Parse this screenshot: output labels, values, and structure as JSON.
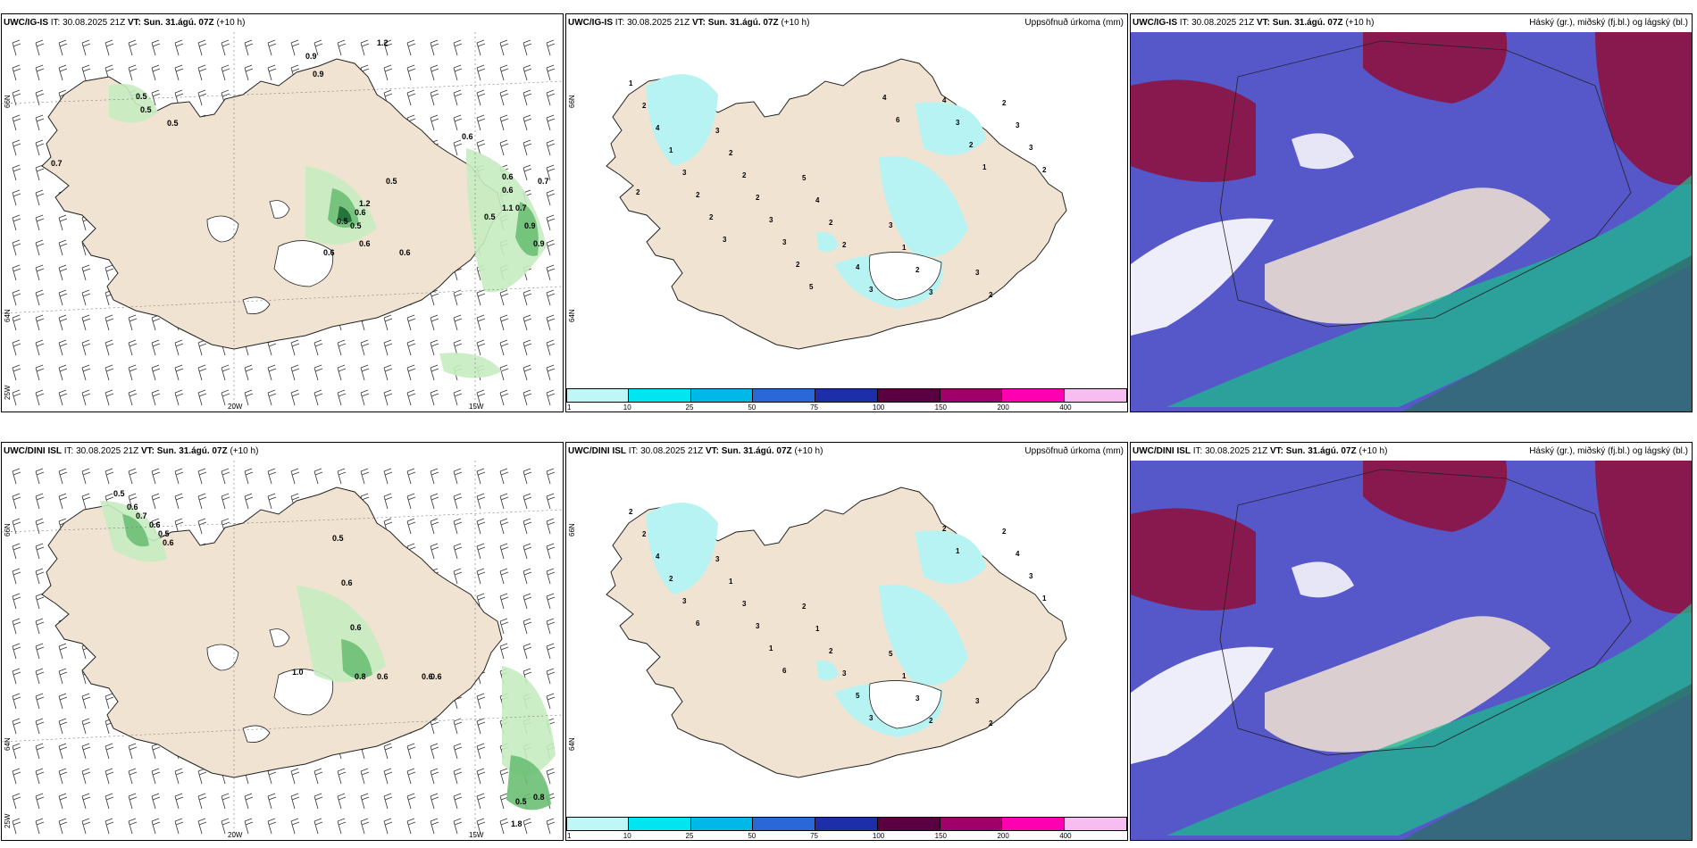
{
  "panels": [
    {
      "id": "top-left",
      "model": "UWC/IG-IS",
      "it_label": "IT:",
      "it_value": "30.08.2025 21Z",
      "vt_label": "VT:",
      "vt_value": "Sun. 31.ágú. 07Z",
      "lead": "(+10 h)",
      "right_label": "",
      "axis_labels": {
        "lon1": "20W",
        "lon2": "15W",
        "lat1": "66N",
        "lat2": "64N",
        "lon0": "25W"
      },
      "values": [
        "0.7",
        "0.5",
        "0.5",
        "0.5",
        "0.9",
        "0.9",
        "1.2",
        "0.6",
        "0.5",
        "0.6",
        "0.6",
        "0.6",
        "0.5",
        "0.6",
        "1.2",
        "0.5",
        "0.7",
        "0.6",
        "0.5",
        "1.1",
        "0.7",
        "0.9",
        "0.6",
        "0.9"
      ]
    },
    {
      "id": "top-middle",
      "model": "UWC/IG-IS",
      "it_label": "IT:",
      "it_value": "30.08.2025 21Z",
      "vt_label": "VT:",
      "vt_value": "Sun. 31.ágú. 07Z",
      "lead": "(+10 h)",
      "right_label": "Uppsöfnuð úrkoma (mm)",
      "axis_labels": {
        "lat1": "66N",
        "lat2": "64N"
      },
      "values": [
        "1",
        "3",
        "5",
        "3",
        "3",
        "2",
        "2",
        "4",
        "1",
        "2",
        "4",
        "2",
        "2",
        "2",
        "2",
        "1",
        "2",
        "2",
        "3",
        "3",
        "3",
        "3",
        "4",
        "4",
        "3",
        "2",
        "3",
        "3",
        "3",
        "2",
        "2",
        "2",
        "4",
        "2",
        "2",
        "3",
        "5",
        "6",
        "1"
      ]
    },
    {
      "id": "top-right",
      "model": "UWC/IG-IS",
      "it_label": "IT:",
      "it_value": "30.08.2025 21Z",
      "vt_label": "VT:",
      "vt_value": "Sun. 31.ágú. 07Z",
      "lead": "(+10 h)",
      "right_label": "Háský (gr.), miðský (fj.bl.) og lágský (bl.)"
    },
    {
      "id": "bottom-left",
      "model": "UWC/DINI ISL",
      "it_label": "IT:",
      "it_value": "30.08.2025 21Z",
      "vt_label": "VT:",
      "vt_value": "Sun. 31.ágú. 07Z",
      "lead": "(+10 h)",
      "right_label": "",
      "axis_labels": {
        "lon1": "20W",
        "lon2": "15W",
        "lat1": "66N",
        "lat2": "64N",
        "lon0": "25W"
      },
      "values": [
        "0.5",
        "0.6",
        "0.7",
        "0.6",
        "0.5",
        "0.6",
        "0.5",
        "0.6",
        "0.6",
        "1.0",
        "0.8",
        "0.6",
        "0.6",
        "0.6",
        "0.5",
        "0.8",
        "1.8"
      ]
    },
    {
      "id": "bottom-middle",
      "model": "UWC/DINI ISL",
      "it_label": "IT:",
      "it_value": "30.08.2025 21Z",
      "vt_label": "VT:",
      "vt_value": "Sun. 31.ágú. 07Z",
      "lead": "(+10 h)",
      "right_label": "Uppsöfnuð úrkoma (mm)",
      "axis_labels": {
        "lat1": "66N",
        "lat2": "64N"
      },
      "values": [
        "2",
        "3",
        "2",
        "5",
        "3",
        "2",
        "1",
        "1",
        "1",
        "2",
        "4",
        "3",
        "2",
        "3",
        "2",
        "2",
        "3",
        "3",
        "2",
        "4",
        "3",
        "1",
        "5",
        "2",
        "3",
        "6",
        "6",
        "3",
        "1",
        "1"
      ]
    },
    {
      "id": "bottom-right",
      "model": "UWC/DINI ISL",
      "it_label": "IT:",
      "it_value": "30.08.2025 21Z",
      "vt_label": "VT:",
      "vt_value": "Sun. 31.ágú. 07Z",
      "lead": "(+10 h)",
      "right_label": "Háský (gr.), miðský (fj.bl.) og lágský (bl.)"
    }
  ],
  "colorbar": {
    "labels": [
      "1",
      "10",
      "25",
      "50",
      "75",
      "100",
      "150",
      "200",
      "400"
    ],
    "colors": [
      "#bff7f7",
      "#00e5f0",
      "#00b8e8",
      "#2a68d8",
      "#1c2fa8",
      "#5a0042",
      "#a0006a",
      "#ff00b0",
      "#f6bdf0"
    ]
  },
  "colors": {
    "land": "#f1e3d2",
    "precip_light": "#c7ecc0",
    "precip_mid": "#6cbf74",
    "precip_dark": "#1f6a36",
    "accum_cyan": "#b7f3f2",
    "cloud_high": "#1fb98b",
    "cloud_mid": "#5657c9",
    "cloud_low": "#8d1340"
  }
}
